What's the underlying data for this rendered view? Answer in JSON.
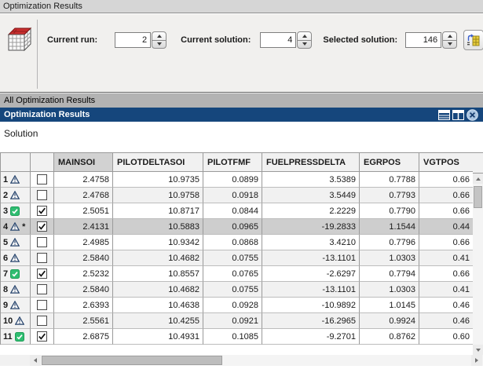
{
  "group": {
    "title": "Optimization Results",
    "toolbar": {
      "current_run_label": "Current run:",
      "current_run_value": "2",
      "current_solution_label": "Current solution:",
      "current_solution_value": "4",
      "selected_solution_label": "Selected solution:",
      "selected_solution_value": "146"
    }
  },
  "section_header": "All Optimization Results",
  "window": {
    "title": "Optimization Results"
  },
  "solution_label": "Solution",
  "icons": {
    "results_cube": "3d-grid-cube-red-top",
    "export_solution": "yellow-table-with-blue-arrow",
    "layout_rows": "rows-layout",
    "layout_columns": "columns-layout",
    "close": "close-circle-x",
    "warning": "warning-triangle",
    "ok": "green-check-square"
  },
  "colors": {
    "window_bar_blue": "#15467c",
    "section_bar_gray": "#b3b3b3",
    "selected_row": "#cecece",
    "highlighted_header": "#d2d2d2",
    "warning_icon": "#24426b",
    "ok_icon": "#2fbd71"
  },
  "table": {
    "headers": [
      "MAINSOI",
      "PILOTDELTASOI",
      "PILOTFMF",
      "FUELPRESSDELTA",
      "EGRPOS",
      "VGTPOS"
    ],
    "highlighted_header": "MAINSOI",
    "rows": [
      {
        "num": "1",
        "status": "warning",
        "checked": false,
        "selected": false,
        "suffix": "",
        "values": [
          "2.4758",
          "10.9735",
          "0.0899",
          "3.5389",
          "0.7788",
          "0.66"
        ]
      },
      {
        "num": "2",
        "status": "warning",
        "checked": false,
        "selected": false,
        "suffix": "",
        "values": [
          "2.4768",
          "10.9758",
          "0.0918",
          "3.5449",
          "0.7793",
          "0.66"
        ]
      },
      {
        "num": "3",
        "status": "ok",
        "checked": true,
        "selected": false,
        "suffix": "",
        "values": [
          "2.5051",
          "10.8717",
          "0.0844",
          "2.2229",
          "0.7790",
          "0.66"
        ]
      },
      {
        "num": "4",
        "status": "warning",
        "checked": true,
        "selected": true,
        "suffix": "*",
        "values": [
          "2.4131",
          "10.5883",
          "0.0965",
          "-19.2833",
          "1.1544",
          "0.44"
        ]
      },
      {
        "num": "5",
        "status": "warning",
        "checked": false,
        "selected": false,
        "suffix": "",
        "values": [
          "2.4985",
          "10.9342",
          "0.0868",
          "3.4210",
          "0.7796",
          "0.66"
        ]
      },
      {
        "num": "6",
        "status": "warning",
        "checked": false,
        "selected": false,
        "suffix": "",
        "values": [
          "2.5840",
          "10.4682",
          "0.0755",
          "-13.1101",
          "1.0303",
          "0.41"
        ]
      },
      {
        "num": "7",
        "status": "ok",
        "checked": true,
        "selected": false,
        "suffix": "",
        "values": [
          "2.5232",
          "10.8557",
          "0.0765",
          "-2.6297",
          "0.7794",
          "0.66"
        ]
      },
      {
        "num": "8",
        "status": "warning",
        "checked": false,
        "selected": false,
        "suffix": "",
        "values": [
          "2.5840",
          "10.4682",
          "0.0755",
          "-13.1101",
          "1.0303",
          "0.41"
        ]
      },
      {
        "num": "9",
        "status": "warning",
        "checked": false,
        "selected": false,
        "suffix": "",
        "values": [
          "2.6393",
          "10.4638",
          "0.0928",
          "-10.9892",
          "1.0145",
          "0.46"
        ]
      },
      {
        "num": "10",
        "status": "warning",
        "checked": false,
        "selected": false,
        "suffix": "",
        "values": [
          "2.5561",
          "10.4255",
          "0.0921",
          "-16.2965",
          "0.9924",
          "0.46"
        ]
      },
      {
        "num": "11",
        "status": "ok",
        "checked": true,
        "selected": false,
        "suffix": "",
        "values": [
          "2.6875",
          "10.4931",
          "0.1085",
          "-9.2701",
          "0.8762",
          "0.60"
        ]
      }
    ]
  }
}
